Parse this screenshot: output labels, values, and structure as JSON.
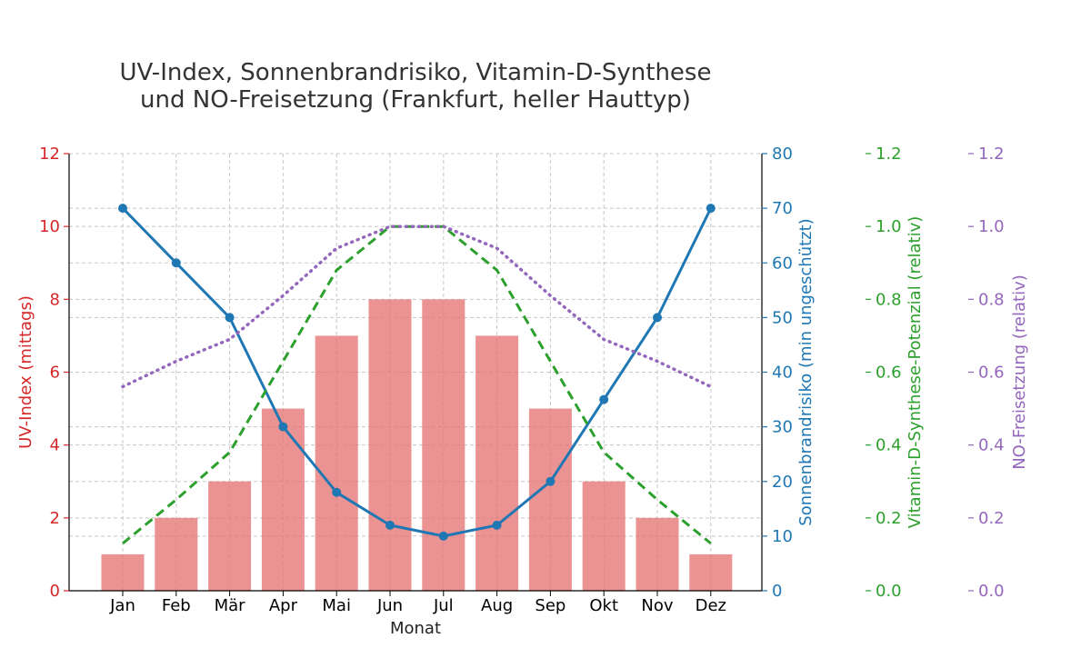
{
  "chart_data": {
    "type": "bar",
    "title_line1": "UV-Index, Sonnenbrandrisiko, Vitamin-D-Synthese",
    "title_line2": "und NO-Freisetzung (Frankfurt, heller Hauttyp)",
    "xlabel": "Monat",
    "categories": [
      "Jan",
      "Feb",
      "Mär",
      "Apr",
      "Mai",
      "Jun",
      "Jul",
      "Aug",
      "Sep",
      "Okt",
      "Nov",
      "Dez"
    ],
    "grid": true,
    "series": [
      {
        "name": "UV-Index (mittags)",
        "kind": "bar",
        "axis": "uv",
        "color": "#e57373",
        "values": [
          1,
          2,
          3,
          5,
          7,
          8,
          8,
          7,
          5,
          3,
          2,
          1
        ]
      },
      {
        "name": "Sonnenbrandrisiko (min ungeschützt)",
        "kind": "line-marker",
        "axis": "burn",
        "color": "#1f77b4",
        "values": [
          70,
          60,
          50,
          30,
          18,
          12,
          10,
          12,
          20,
          35,
          50,
          70
        ]
      },
      {
        "name": "Vitamin-D-Synthese-Potenzial (relativ)",
        "kind": "dashed",
        "axis": "vitd",
        "color": "#2ca02c",
        "values": [
          0.13,
          0.25,
          0.38,
          0.63,
          0.88,
          1.0,
          1.0,
          0.88,
          0.63,
          0.38,
          0.25,
          0.13
        ]
      },
      {
        "name": "NO-Freisetzung (relativ)",
        "kind": "dotted",
        "axis": "no",
        "color": "#9467bd",
        "values": [
          0.56,
          0.63,
          0.69,
          0.81,
          0.94,
          1.0,
          1.0,
          0.94,
          0.81,
          0.69,
          0.63,
          0.56
        ]
      }
    ],
    "axes": {
      "uv": {
        "label": "UV-Index (mittags)",
        "color": "#d62728",
        "ylim": [
          0,
          12
        ],
        "ticks": [
          "0",
          "2",
          "4",
          "6",
          "8",
          "10",
          "12"
        ]
      },
      "burn": {
        "label": "Sonnenbrandrisiko (min ungeschützt)",
        "color": "#1f77b4",
        "ylim": [
          0,
          80
        ],
        "ticks": [
          "0",
          "10",
          "20",
          "30",
          "40",
          "50",
          "60",
          "70",
          "80"
        ]
      },
      "vitd": {
        "label": "Vitamin-D-Synthese-Potenzial (relativ)",
        "color": "#2ca02c",
        "ylim": [
          0,
          1.2
        ],
        "ticks": [
          "0.0",
          "0.2",
          "0.4",
          "0.6",
          "0.8",
          "1.0",
          "1.2"
        ]
      },
      "no": {
        "label": "NO-Freisetzung (relativ)",
        "color": "#9467bd",
        "ylim": [
          0,
          1.2
        ],
        "ticks": [
          "0.0",
          "0.2",
          "0.4",
          "0.6",
          "0.8",
          "1.0",
          "1.2"
        ]
      }
    }
  }
}
